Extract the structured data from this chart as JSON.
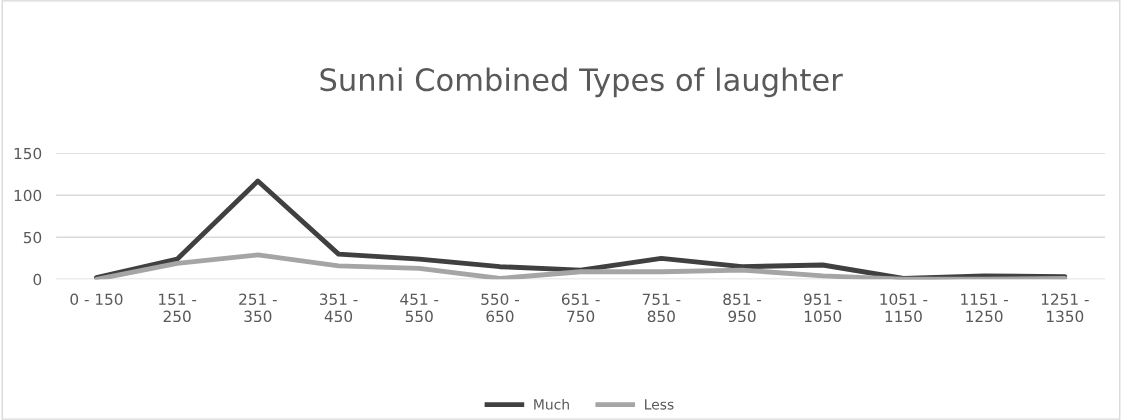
{
  "chart_data": {
    "type": "line",
    "title": "Sunni Combined Types of laughter",
    "categories": [
      "0 - 150",
      "151 -\n250",
      "251 -\n350",
      "351 -\n450",
      "451 -\n550",
      "550 -\n650",
      "651 -\n750",
      "751 -\n850",
      "851 -\n950",
      "951 -\n1050",
      "1051 -\n1150",
      "1151 -\n1250",
      "1251 -\n1350"
    ],
    "series": [
      {
        "name": "Much",
        "color": "#404040",
        "values": [
          2,
          24,
          117,
          30,
          24,
          15,
          11,
          25,
          15,
          17,
          1,
          4,
          3
        ]
      },
      {
        "name": "Less",
        "color": "#a5a5a5",
        "values": [
          0,
          19,
          29,
          16,
          13,
          1,
          9,
          9,
          11,
          4,
          0,
          0,
          1
        ]
      }
    ],
    "ylim": [
      0,
      150
    ],
    "yticks": [
      0,
      50,
      100,
      150
    ],
    "grid": "y",
    "legend": "bottom",
    "marker": "none",
    "line_style": "solid"
  }
}
